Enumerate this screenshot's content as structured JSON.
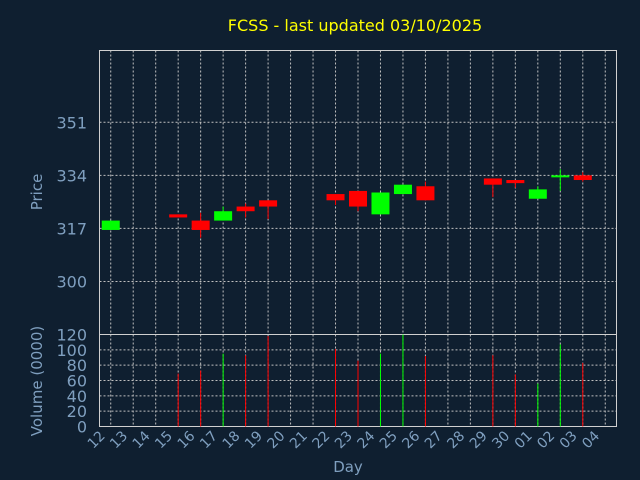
{
  "chart_data": {
    "type": "candlestick",
    "title": "FCSS - last updated 03/10/2025",
    "price_panel": {
      "ylabel": "Price",
      "ylim": [
        283,
        374
      ],
      "yticks": [
        300,
        317,
        334,
        351
      ],
      "grid": true
    },
    "volume_panel": {
      "ylabel": "Volume (0000)",
      "ylim": [
        0,
        120
      ],
      "yticks": [
        0,
        20,
        40,
        60,
        80,
        100,
        120
      ],
      "grid": true
    },
    "xlabel": "Day",
    "day_labels": [
      "12",
      "13",
      "14",
      "15",
      "16",
      "17",
      "18",
      "19",
      "20",
      "21",
      "22",
      "23",
      "24",
      "25",
      "26",
      "27",
      "28",
      "29",
      "30",
      "01",
      "02",
      "03",
      "04"
    ],
    "colors": {
      "up": "#00ff00",
      "down": "#ff0000",
      "grid": "#c0c0c0",
      "background": "#0f1f30",
      "title": "#ffff00",
      "tick": "#7f9fbf"
    },
    "candles": [
      {
        "day": "12",
        "open": 316.5,
        "close": 319.5,
        "high": 319.5,
        "low": 316.5,
        "volume": 0
      },
      {
        "day": "15",
        "open": 321.5,
        "close": 320.5,
        "high": 321.5,
        "low": 320.5,
        "volume": 69
      },
      {
        "day": "16",
        "open": 319.5,
        "close": 316.5,
        "high": 322,
        "low": 314,
        "volume": 73
      },
      {
        "day": "17",
        "open": 319.5,
        "close": 322.5,
        "high": 324,
        "low": 319.5,
        "volume": 95
      },
      {
        "day": "18",
        "open": 324,
        "close": 322.5,
        "high": 325,
        "low": 320.5,
        "volume": 93
      },
      {
        "day": "19",
        "open": 326,
        "close": 324,
        "high": 326,
        "low": 320,
        "volume": 118
      },
      {
        "day": "22",
        "open": 328,
        "close": 326,
        "high": 328,
        "low": 324.5,
        "volume": 101
      },
      {
        "day": "23",
        "open": 329,
        "close": 324,
        "high": 329,
        "low": 322.5,
        "volume": 86
      },
      {
        "day": "24",
        "open": 321.5,
        "close": 328.5,
        "high": 328.5,
        "low": 321.5,
        "volume": 95
      },
      {
        "day": "25",
        "open": 328,
        "close": 331,
        "high": 331,
        "low": 328,
        "volume": 120
      },
      {
        "day": "26",
        "open": 330.5,
        "close": 326,
        "high": 332,
        "low": 326,
        "volume": 92
      },
      {
        "day": "29",
        "open": 333,
        "close": 331,
        "high": 333,
        "low": 327,
        "volume": 93
      },
      {
        "day": "30",
        "open": 332.5,
        "close": 331.5,
        "high": 332.5,
        "low": 330,
        "volume": 68
      },
      {
        "day": "01",
        "open": 326.5,
        "close": 329.5,
        "high": 330.5,
        "low": 326.5,
        "volume": 56
      },
      {
        "day": "02",
        "open": 333.5,
        "close": 334,
        "high": 336,
        "low": 329,
        "volume": 107
      },
      {
        "day": "03",
        "open": 334,
        "close": 332.5,
        "high": 335,
        "low": 332,
        "volume": 83
      }
    ]
  }
}
